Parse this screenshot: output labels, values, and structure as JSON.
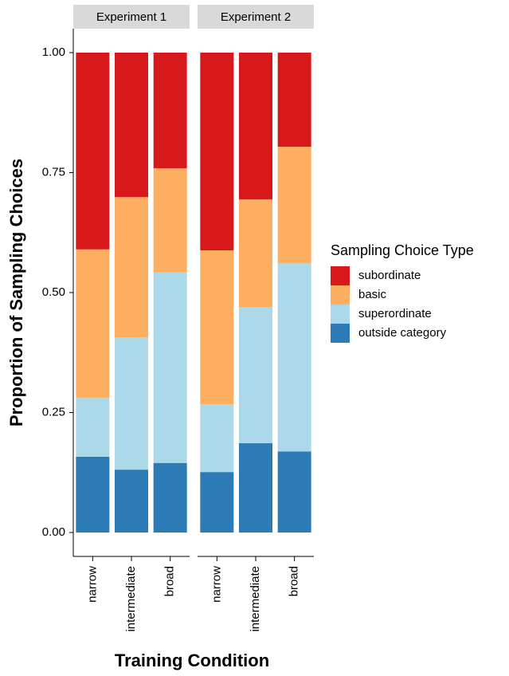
{
  "chart_data": {
    "type": "bar",
    "stacked": true,
    "ylabel": "Proportion of Sampling Choices",
    "xlabel": "Training Condition",
    "legend_title": "Sampling Choice Type",
    "legend": "right",
    "ylim": [
      0,
      1
    ],
    "yticks": [
      {
        "value": 0,
        "label": "0.00"
      },
      {
        "value": 0.25,
        "label": "0.25"
      },
      {
        "value": 0.5,
        "label": "0.50"
      },
      {
        "value": 0.75,
        "label": "0.75"
      },
      {
        "value": 1,
        "label": "1.00"
      }
    ],
    "series": [
      {
        "name": "outside category",
        "color": "#2c7bb6"
      },
      {
        "name": "superordinate",
        "color": "#abd9e9"
      },
      {
        "name": "basic",
        "color": "#fdae61"
      },
      {
        "name": "subordinate",
        "color": "#d7191c"
      }
    ],
    "panels": [
      {
        "title": "Experiment 1",
        "categories": [
          "narrow",
          "intermediate",
          "broad"
        ],
        "series": [
          {
            "values": [
              0.158,
              0.131,
              0.145
            ]
          },
          {
            "values": [
              0.123,
              0.276,
              0.397
            ]
          },
          {
            "values": [
              0.309,
              0.292,
              0.217
            ]
          },
          {
            "values": [
              0.41,
              0.301,
              0.241
            ]
          }
        ]
      },
      {
        "title": "Experiment 2",
        "categories": [
          "narrow",
          "intermediate",
          "broad"
        ],
        "series": [
          {
            "values": [
              0.126,
              0.186,
              0.169
            ]
          },
          {
            "values": [
              0.141,
              0.284,
              0.392
            ]
          },
          {
            "values": [
              0.321,
              0.224,
              0.243
            ]
          },
          {
            "values": [
              0.412,
              0.306,
              0.196
            ]
          }
        ]
      }
    ]
  }
}
